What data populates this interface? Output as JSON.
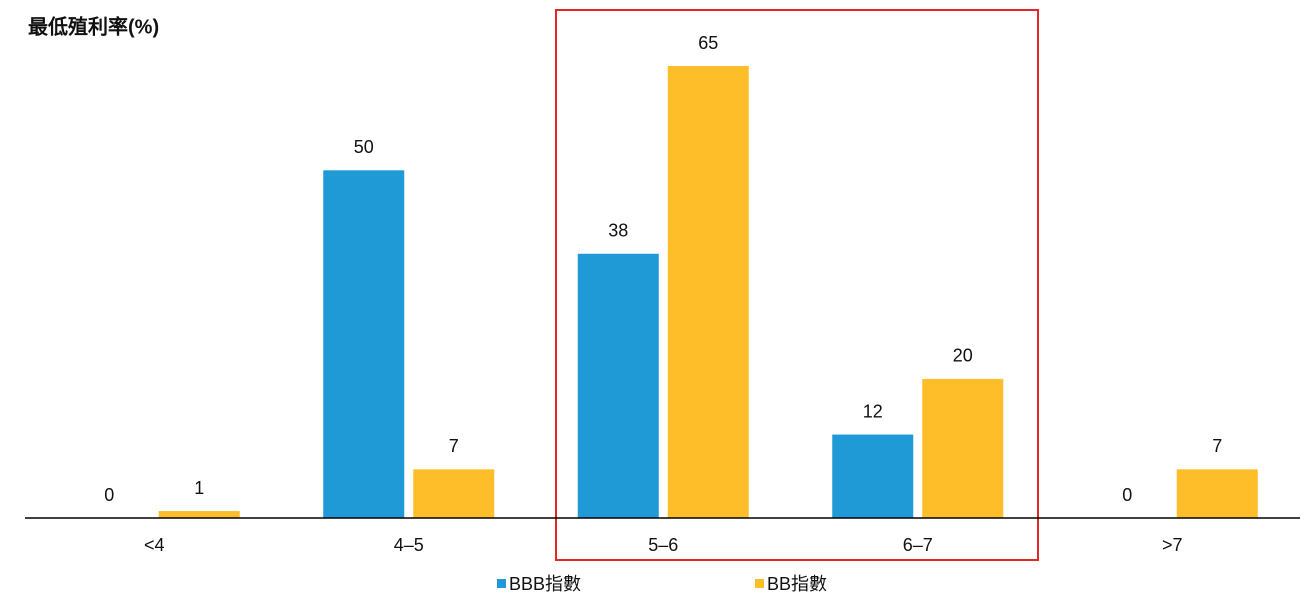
{
  "chart_data": {
    "type": "bar",
    "title": "最低殖利率(%)",
    "categories": [
      "<4",
      "4–5",
      "5–6",
      "6–7",
      ">7"
    ],
    "series": [
      {
        "name": "BBB指數",
        "color": "#1f9ad6",
        "values": [
          0,
          50,
          38,
          12,
          0
        ]
      },
      {
        "name": "BB指數",
        "color": "#fdbe2a",
        "values": [
          1,
          7,
          65,
          20,
          7
        ]
      }
    ]
  }
}
